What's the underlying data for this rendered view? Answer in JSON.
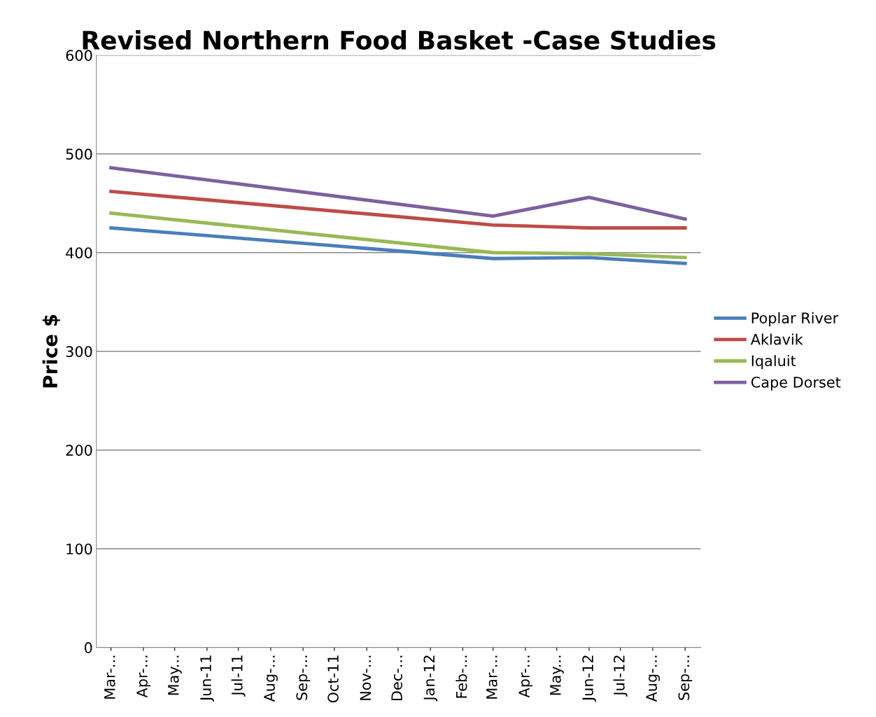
{
  "chart_data": {
    "type": "line",
    "title": "Revised Northern Food Basket -Case Studies",
    "ylabel": "Price $",
    "ylim": [
      0,
      600
    ],
    "yticks": [
      0,
      100,
      200,
      300,
      400,
      500,
      600
    ],
    "xlim": [
      "2011-02-15",
      "2012-09-16"
    ],
    "xticks": [
      {
        "value": "2011-03-01",
        "label": "Mar-..."
      },
      {
        "value": "2011-04-01",
        "label": "Apr-..."
      },
      {
        "value": "2011-05-01",
        "label": "May..."
      },
      {
        "value": "2011-06-01",
        "label": "Jun-11"
      },
      {
        "value": "2011-07-01",
        "label": "Jul-11"
      },
      {
        "value": "2011-08-01",
        "label": "Aug-..."
      },
      {
        "value": "2011-09-01",
        "label": "Sep-..."
      },
      {
        "value": "2011-10-01",
        "label": "Oct-11"
      },
      {
        "value": "2011-11-01",
        "label": "Nov-..."
      },
      {
        "value": "2011-12-01",
        "label": "Dec-..."
      },
      {
        "value": "2012-01-01",
        "label": "Jan-12"
      },
      {
        "value": "2012-02-01",
        "label": "Feb-..."
      },
      {
        "value": "2012-03-01",
        "label": "Mar-..."
      },
      {
        "value": "2012-04-01",
        "label": "Apr-..."
      },
      {
        "value": "2012-05-01",
        "label": "May..."
      },
      {
        "value": "2012-06-01",
        "label": "Jun-12"
      },
      {
        "value": "2012-07-01",
        "label": "Jul-12"
      },
      {
        "value": "2012-08-01",
        "label": "Aug-..."
      },
      {
        "value": "2012-09-01",
        "label": "Sep-..."
      }
    ],
    "x": [
      "2011-03-01",
      "2012-03-01",
      "2012-06-01",
      "2012-09-01"
    ],
    "series": [
      {
        "name": "Poplar River",
        "color": "#4a7ebb",
        "values": [
          425,
          394,
          395,
          389
        ]
      },
      {
        "name": "Aklavik",
        "color": "#be4b48",
        "values": [
          462,
          428,
          425,
          425
        ]
      },
      {
        "name": "Iqaluit",
        "color": "#98b954",
        "values": [
          440,
          400,
          399,
          395
        ]
      },
      {
        "name": "Cape Dorset",
        "color": "#7d60a0",
        "values": [
          486,
          437,
          456,
          434
        ]
      }
    ],
    "grid": "y",
    "legend": "right",
    "marker": "none",
    "line_style": "solid"
  }
}
